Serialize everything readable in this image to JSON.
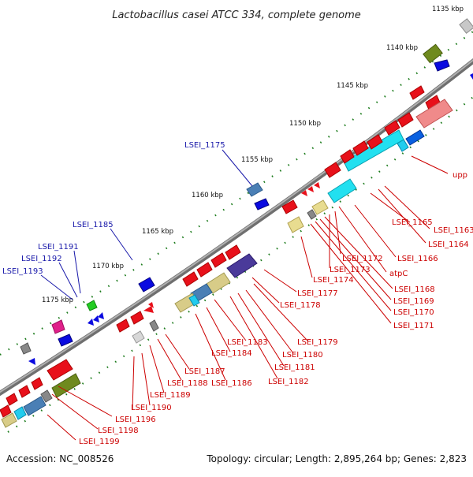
{
  "title": "Lactobacillus casei ATCC 334, complete genome",
  "footer": {
    "accession": "Accession: NC_008526",
    "summary": "Topology: circular; Length: 2,895,264 bp; Genes: 2,823"
  },
  "colors": {
    "forward_gene": "#e8101a",
    "reverse_label": "#1a1aaa",
    "forward_label": "#cc0000",
    "backbone": "#8a8a8a",
    "tick": "#1a7a1a"
  },
  "ticks": [
    {
      "label": "1135 kbp",
      "kbp": 1135
    },
    {
      "label": "1140 kbp",
      "kbp": 1140
    },
    {
      "label": "1145 kbp",
      "kbp": 1145
    },
    {
      "label": "1150 kbp",
      "kbp": 1150
    },
    {
      "label": "1155 kbp",
      "kbp": 1155
    },
    {
      "label": "1160 kbp",
      "kbp": 1160
    },
    {
      "label": "1165 kbp",
      "kbp": 1165
    },
    {
      "label": "1170 kbp",
      "kbp": 1170
    },
    {
      "label": "1175 kbp",
      "kbp": 1175
    }
  ],
  "gene_labels": [
    {
      "text": "LSEI_1175",
      "strand": "reverse"
    },
    {
      "text": "LSEI_1185",
      "strand": "reverse"
    },
    {
      "text": "LSEI_1191",
      "strand": "reverse"
    },
    {
      "text": "LSEI_1192",
      "strand": "reverse"
    },
    {
      "text": "LSEI_1193",
      "strand": "reverse"
    },
    {
      "text": "upp",
      "strand": "forward"
    },
    {
      "text": "LSEI_1163",
      "strand": "forward"
    },
    {
      "text": "LSEI_1164",
      "strand": "forward"
    },
    {
      "text": "LSEI_1165",
      "strand": "forward"
    },
    {
      "text": "LSEI_1166",
      "strand": "forward"
    },
    {
      "text": "LSEI_1172",
      "strand": "forward"
    },
    {
      "text": "LSEI_1173",
      "strand": "forward"
    },
    {
      "text": "atpC",
      "strand": "forward"
    },
    {
      "text": "LSEI_1168",
      "strand": "forward"
    },
    {
      "text": "LSEI_1169",
      "strand": "forward"
    },
    {
      "text": "LSEI_1170",
      "strand": "forward"
    },
    {
      "text": "LSEI_1171",
      "strand": "forward"
    },
    {
      "text": "LSEI_1174",
      "strand": "forward"
    },
    {
      "text": "LSEI_1177",
      "strand": "forward"
    },
    {
      "text": "LSEI_1178",
      "strand": "forward"
    },
    {
      "text": "LSEI_1179",
      "strand": "forward"
    },
    {
      "text": "LSEI_1180",
      "strand": "forward"
    },
    {
      "text": "LSEI_1181",
      "strand": "forward"
    },
    {
      "text": "LSEI_1182",
      "strand": "forward"
    },
    {
      "text": "LSEI_1183",
      "strand": "forward"
    },
    {
      "text": "LSEI_1184",
      "strand": "forward"
    },
    {
      "text": "LSEI_1186",
      "strand": "forward"
    },
    {
      "text": "LSEI_1187",
      "strand": "forward"
    },
    {
      "text": "LSEI_1188",
      "strand": "forward"
    },
    {
      "text": "LSEI_1189",
      "strand": "forward"
    },
    {
      "text": "LSEI_1190",
      "strand": "forward"
    },
    {
      "text": "LSEI_1196",
      "strand": "forward"
    },
    {
      "text": "LSEI_1198",
      "strand": "forward"
    },
    {
      "text": "LSEI_1199",
      "strand": "forward"
    }
  ]
}
